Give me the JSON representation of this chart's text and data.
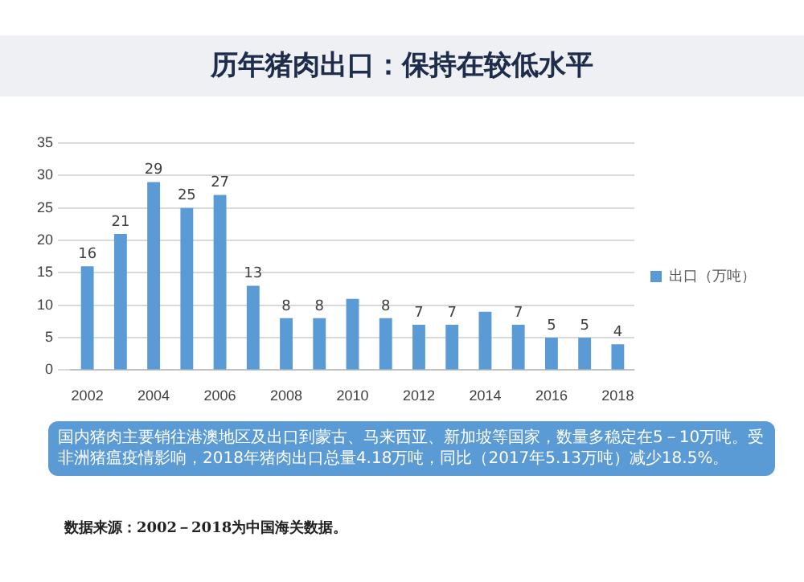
{
  "chart_data": {
    "type": "bar",
    "title": "历年猪肉出口：保持在较低水平",
    "categories": [
      "2002",
      null,
      "2004",
      null,
      "2006",
      null,
      "2008",
      null,
      "2010",
      null,
      "2012",
      null,
      "2014",
      null,
      "2016",
      null,
      "2018"
    ],
    "series": [
      {
        "name": "出口（万吨）",
        "color": "#5b9bd5",
        "values": [
          16,
          21,
          29,
          25,
          27,
          13,
          8,
          8,
          11,
          8,
          7,
          7,
          9,
          7,
          5,
          5,
          4
        ],
        "value_labels": [
          "16",
          "21",
          "29",
          "25",
          "27",
          "13",
          "8",
          "8",
          null,
          "8",
          "7",
          "7",
          null,
          "7",
          "5",
          "5",
          "4"
        ]
      }
    ],
    "ylim": [
      0,
      35
    ],
    "yticks": [
      0,
      5,
      10,
      15,
      20,
      25,
      30,
      35
    ],
    "grid": "y",
    "legend": "right",
    "annotations": [
      "国内猪肉主要销往港澳地区及出口到蒙古、马来西亚、新加坡等国家，数量多稳定在5－10万吨。受非洲猪瘟疫情影响，2018年猪肉出口总量4.18万吨，同比（2017年5.13万吨）减少18.5%。",
      "数据来源：2002－2018为中国海关数据。"
    ]
  }
}
